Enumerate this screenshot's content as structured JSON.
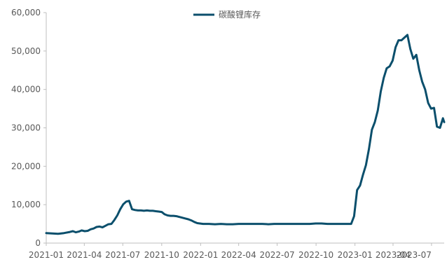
{
  "chart_data": {
    "type": "line",
    "title": "",
    "xlabel": "",
    "ylabel": "",
    "legend_position": "top",
    "grid": false,
    "ylim": [
      0,
      60000
    ],
    "yticks": [
      "0",
      "10,000",
      "20,000",
      "30,000",
      "40,000",
      "50,000",
      "60,000"
    ],
    "ytick_values": [
      0,
      10000,
      20000,
      30000,
      40000,
      50000,
      60000
    ],
    "xticks": [
      "2021-01",
      "2021-04",
      "2021-07",
      "2021-10",
      "2022-01",
      "2022-04",
      "2022-07",
      "2022-10",
      "2023-01",
      "2023-04",
      "2023-07"
    ],
    "xlim": [
      "2021-01-01",
      "2023-07-31"
    ],
    "series": [
      {
        "name": "碳酸锂库存",
        "color": "#0b4f6c",
        "points": [
          [
            "2021-01-01",
            2600
          ],
          [
            "2021-01-15",
            2500
          ],
          [
            "2021-01-29",
            2400
          ],
          [
            "2021-02-12",
            2600
          ],
          [
            "2021-02-26",
            2900
          ],
          [
            "2021-03-05",
            3100
          ],
          [
            "2021-03-12",
            2800
          ],
          [
            "2021-03-19",
            3000
          ],
          [
            "2021-03-26",
            3300
          ],
          [
            "2021-04-02",
            3100
          ],
          [
            "2021-04-09",
            3200
          ],
          [
            "2021-04-16",
            3600
          ],
          [
            "2021-04-23",
            3800
          ],
          [
            "2021-04-30",
            4200
          ],
          [
            "2021-05-07",
            4300
          ],
          [
            "2021-05-14",
            4100
          ],
          [
            "2021-05-21",
            4500
          ],
          [
            "2021-05-28",
            4900
          ],
          [
            "2021-06-04",
            5000
          ],
          [
            "2021-06-11",
            6000
          ],
          [
            "2021-06-18",
            7200
          ],
          [
            "2021-06-25",
            8800
          ],
          [
            "2021-07-02",
            10100
          ],
          [
            "2021-07-09",
            10800
          ],
          [
            "2021-07-16",
            11000
          ],
          [
            "2021-07-23",
            8800
          ],
          [
            "2021-07-30",
            8600
          ],
          [
            "2021-08-06",
            8500
          ],
          [
            "2021-08-13",
            8500
          ],
          [
            "2021-08-20",
            8400
          ],
          [
            "2021-08-27",
            8500
          ],
          [
            "2021-09-03",
            8400
          ],
          [
            "2021-09-10",
            8400
          ],
          [
            "2021-09-17",
            8300
          ],
          [
            "2021-09-24",
            8200
          ],
          [
            "2021-10-01",
            8100
          ],
          [
            "2021-10-08",
            7500
          ],
          [
            "2021-10-15",
            7200
          ],
          [
            "2021-10-22",
            7100
          ],
          [
            "2021-10-29",
            7100
          ],
          [
            "2021-11-05",
            7000
          ],
          [
            "2021-11-12",
            6800
          ],
          [
            "2021-11-19",
            6600
          ],
          [
            "2021-11-26",
            6400
          ],
          [
            "2021-12-03",
            6200
          ],
          [
            "2021-12-10",
            5900
          ],
          [
            "2021-12-17",
            5500
          ],
          [
            "2021-12-24",
            5200
          ],
          [
            "2022-01-07",
            5000
          ],
          [
            "2022-01-21",
            5000
          ],
          [
            "2022-02-04",
            4900
          ],
          [
            "2022-02-18",
            5000
          ],
          [
            "2022-03-04",
            4900
          ],
          [
            "2022-03-18",
            4900
          ],
          [
            "2022-04-01",
            5000
          ],
          [
            "2022-04-15",
            5000
          ],
          [
            "2022-04-29",
            5000
          ],
          [
            "2022-05-13",
            5000
          ],
          [
            "2022-05-27",
            5000
          ],
          [
            "2022-06-10",
            4900
          ],
          [
            "2022-06-24",
            5000
          ],
          [
            "2022-07-08",
            5000
          ],
          [
            "2022-07-22",
            5000
          ],
          [
            "2022-08-05",
            5000
          ],
          [
            "2022-08-19",
            5000
          ],
          [
            "2022-09-02",
            5000
          ],
          [
            "2022-09-16",
            5000
          ],
          [
            "2022-09-30",
            5100
          ],
          [
            "2022-10-14",
            5100
          ],
          [
            "2022-10-28",
            5000
          ],
          [
            "2022-11-11",
            5000
          ],
          [
            "2022-11-25",
            5000
          ],
          [
            "2022-12-09",
            5000
          ],
          [
            "2022-12-23",
            5000
          ],
          [
            "2022-12-30",
            7000
          ],
          [
            "2023-01-06",
            13800
          ],
          [
            "2023-01-13",
            15000
          ],
          [
            "2023-01-20",
            17800
          ],
          [
            "2023-01-27",
            20300
          ],
          [
            "2023-02-03",
            24500
          ],
          [
            "2023-02-10",
            29500
          ],
          [
            "2023-02-17",
            31500
          ],
          [
            "2023-02-24",
            34500
          ],
          [
            "2023-03-03",
            39500
          ],
          [
            "2023-03-10",
            43000
          ],
          [
            "2023-03-17",
            45500
          ],
          [
            "2023-03-24",
            46000
          ],
          [
            "2023-03-31",
            47500
          ],
          [
            "2023-04-07",
            51000
          ],
          [
            "2023-04-14",
            52800
          ],
          [
            "2023-04-21",
            52800
          ],
          [
            "2023-04-28",
            53500
          ],
          [
            "2023-05-05",
            54200
          ],
          [
            "2023-05-12",
            50500
          ],
          [
            "2023-05-19",
            48000
          ],
          [
            "2023-05-26",
            49000
          ],
          [
            "2023-06-02",
            45000
          ],
          [
            "2023-06-09",
            42000
          ],
          [
            "2023-06-16",
            40000
          ],
          [
            "2023-06-23",
            36500
          ],
          [
            "2023-06-30",
            35000
          ],
          [
            "2023-07-07",
            35200
          ],
          [
            "2023-07-14",
            30300
          ],
          [
            "2023-07-21",
            30000
          ],
          [
            "2023-07-28",
            32500
          ],
          [
            "2023-07-31",
            31500
          ]
        ]
      }
    ]
  }
}
